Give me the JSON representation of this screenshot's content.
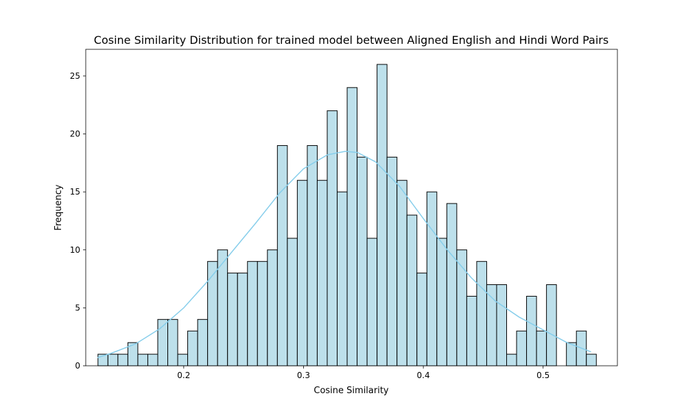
{
  "chart_data": {
    "type": "bar",
    "title": "Cosine Similarity Distribution for trained model between Aligned English and Hindi Word Pairs",
    "xlabel": "Cosine Similarity",
    "ylabel": "Frequency",
    "xlim": [
      0.1182,
      0.562
    ],
    "ylim": [
      0,
      27.3
    ],
    "xticks": [
      0.2,
      0.3,
      0.4,
      0.5
    ],
    "xtick_labels": [
      "0.2",
      "0.3",
      "0.4",
      "0.5"
    ],
    "yticks": [
      0,
      5,
      10,
      15,
      20,
      25
    ],
    "ytick_labels": [
      "0",
      "5",
      "10",
      "15",
      "20",
      "25"
    ],
    "grid": false,
    "bin_start": 0.1284,
    "bin_width": 0.00832,
    "values": [
      1,
      1,
      1,
      2,
      1,
      1,
      4,
      4,
      1,
      3,
      4,
      9,
      10,
      8,
      8,
      9,
      9,
      10,
      19,
      11,
      16,
      19,
      16,
      22,
      15,
      24,
      18,
      11,
      26,
      18,
      16,
      13,
      8,
      15,
      11,
      14,
      10,
      6,
      9,
      7,
      7,
      1,
      3,
      6,
      3,
      7,
      0,
      2,
      3,
      1
    ],
    "bar_fill": "#add8e6",
    "bar_edge": "#000000",
    "kde": {
      "x": [
        0.128,
        0.14,
        0.16,
        0.18,
        0.2,
        0.22,
        0.24,
        0.26,
        0.28,
        0.3,
        0.32,
        0.335,
        0.345,
        0.36,
        0.38,
        0.4,
        0.42,
        0.44,
        0.46,
        0.48,
        0.5,
        0.52,
        0.54
      ],
      "y": [
        0.7,
        1.1,
        1.9,
        3.2,
        5.0,
        7.3,
        9.8,
        12.3,
        14.9,
        17.0,
        18.2,
        18.5,
        18.4,
        17.6,
        15.5,
        12.7,
        10.0,
        7.6,
        5.6,
        4.2,
        3.1,
        2.0,
        1.2
      ],
      "color": "#87ceeb"
    }
  }
}
